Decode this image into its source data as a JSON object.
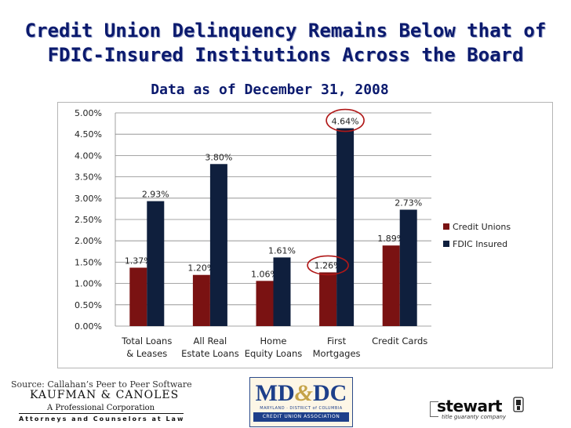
{
  "title_lines": [
    "Credit Union Delinquency Remains Below that of",
    "FDIC-Insured Institutions Across the Board"
  ],
  "subtitle": "Data as of December 31, 2008",
  "source": "Source: Callahan’s Peer to Peer Software",
  "logos": {
    "kaufman_name": "KAUFMAN & CANOLES",
    "kaufman_pc": "A Professional Corporation",
    "kaufman_tagline": "Attorneys and Counselors at Law",
    "mddc_md": "MD",
    "mddc_amp": "&",
    "mddc_dc": "DC",
    "mddc_states": "MARYLAND · DISTRICT of COLUMBIA",
    "mddc_assoc": "CREDIT UNION ASSOCIATION",
    "stewart_name": "stewart",
    "stewart_tagline": "title guaranty company"
  },
  "chart_data": {
    "type": "bar",
    "categories": [
      [
        "Total Loans",
        "& Leases"
      ],
      [
        "All Real",
        "Estate Loans"
      ],
      [
        "Home",
        "Equity Loans"
      ],
      [
        "First",
        "Mortgages"
      ],
      [
        "Credit Cards"
      ]
    ],
    "series": [
      {
        "name": "Credit Unions",
        "color": "#7a1212",
        "values": [
          1.37,
          1.2,
          1.06,
          1.26,
          1.89
        ],
        "labels": [
          "1.37%",
          "1.20%",
          "1.06%",
          "1.26%",
          "1.89%"
        ]
      },
      {
        "name": "FDIC Insured",
        "color": "#0f1f3d",
        "values": [
          2.93,
          3.8,
          1.61,
          4.64,
          2.73
        ],
        "labels": [
          "2.93%",
          "3.80%",
          "1.61%",
          "4.64%",
          "2.73%"
        ]
      }
    ],
    "yticks": [
      "0.00%",
      "0.50%",
      "1.00%",
      "1.50%",
      "2.00%",
      "2.50%",
      "3.00%",
      "3.50%",
      "4.00%",
      "4.50%",
      "5.00%"
    ],
    "ylim": [
      0,
      5
    ],
    "ystep": 0.5,
    "grid": true,
    "legend_position": "right",
    "highlighted_categories": [
      3
    ],
    "highlight_color": "#b01818"
  }
}
